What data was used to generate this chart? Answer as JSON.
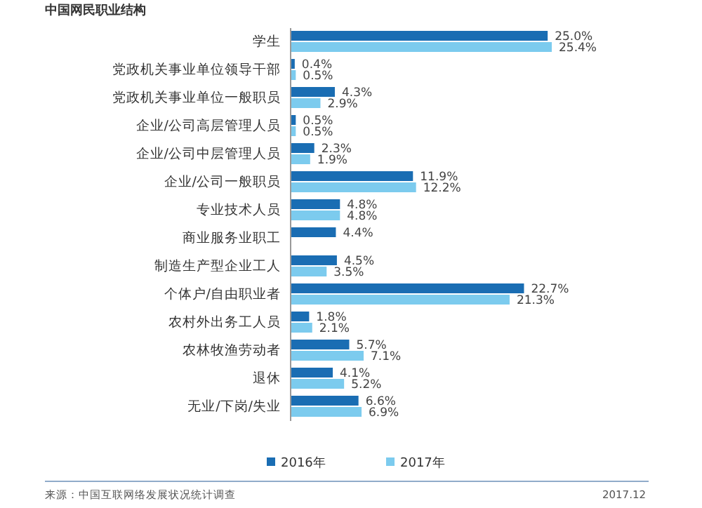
{
  "chart_data": {
    "type": "bar",
    "orientation": "horizontal",
    "title": "中国网民职业结构",
    "categories": [
      "学生",
      "党政机关事业单位领导干部",
      "党政机关事业单位一般职员",
      "企业/公司高层管理人员",
      "企业/公司中层管理人员",
      "企业/公司一般职员",
      "专业技术人员",
      "商业服务业职工",
      "制造生产型企业工人",
      "个体户/自由职业者",
      "农村外出务工人员",
      "农林牧渔劳动者",
      "退休",
      "无业/下岗/失业"
    ],
    "series": [
      {
        "name": "2016年",
        "color": "#1a6db3",
        "values": [
          25.0,
          0.4,
          4.3,
          0.5,
          2.3,
          11.9,
          4.8,
          4.4,
          4.5,
          22.7,
          1.8,
          5.7,
          4.1,
          6.6
        ],
        "value_labels": [
          "25.0%",
          "0.4%",
          "4.3%",
          "0.5%",
          "2.3%",
          "11.9%",
          "4.8%",
          "4.4%",
          "4.5%",
          "22.7%",
          "1.8%",
          "5.7%",
          "4.1%",
          "6.6%"
        ]
      },
      {
        "name": "2017年",
        "color": "#7ccbee",
        "values": [
          25.4,
          0.5,
          2.9,
          0.5,
          1.9,
          12.2,
          4.8,
          null,
          3.5,
          21.3,
          2.1,
          7.1,
          5.2,
          6.9
        ],
        "value_labels": [
          "25.4%",
          "0.5%",
          "2.9%",
          "0.5%",
          "1.9%",
          "12.2%",
          "4.8%",
          null,
          "3.5%",
          "21.3%",
          "2.1%",
          "7.1%",
          "5.2%",
          "6.9%"
        ]
      }
    ],
    "legend": "bottom",
    "annotations": [
      "来源：中国互联网络发展状况统计调查",
      "2017.12"
    ]
  }
}
